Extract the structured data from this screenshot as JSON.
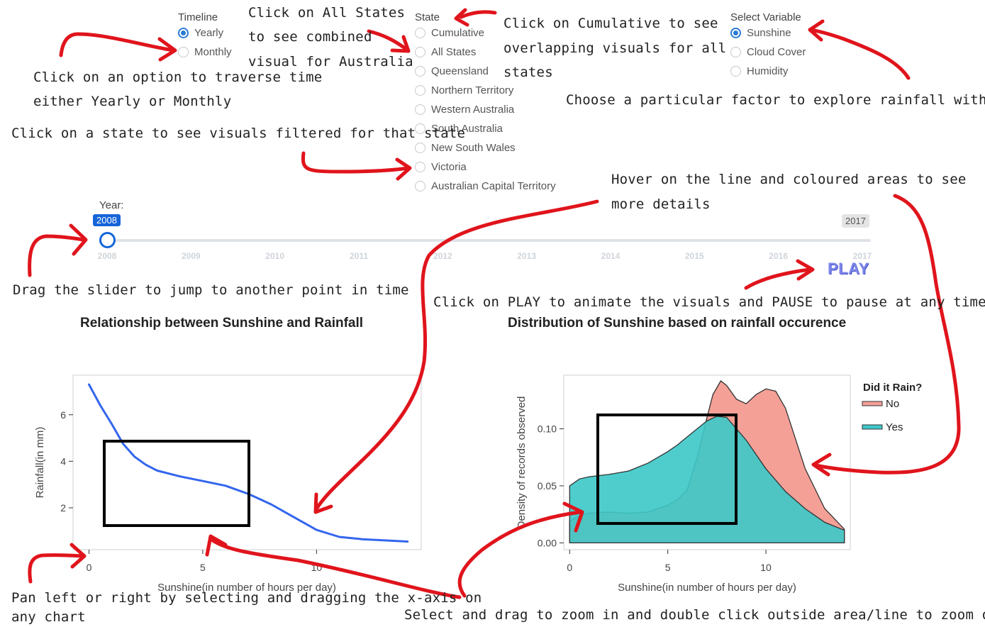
{
  "timeline": {
    "title": "Timeline",
    "options": [
      "Yearly",
      "Monthly"
    ],
    "selected": 0
  },
  "state": {
    "title": "State",
    "options": [
      "Cumulative",
      "All States",
      "Queensland",
      "Northern Territory",
      "Western Australia",
      "South Australia",
      "New South Wales",
      "Victoria",
      "Australian Capital Territory"
    ],
    "selected": -1
  },
  "variable": {
    "title": "Select Variable",
    "options": [
      "Sunshine",
      "Cloud Cover",
      "Humidity"
    ],
    "selected": 0
  },
  "slider": {
    "label": "Year:",
    "current": "2008",
    "end": "2017",
    "years": [
      "2008",
      "2009",
      "2010",
      "2011",
      "2012",
      "2013",
      "2014",
      "2015",
      "2016",
      "2017"
    ],
    "value": 2008
  },
  "play_label": "PLAY",
  "annotations": {
    "timeline_l1": "Click on  an option to traverse time",
    "timeline_l2": "either Yearly or Monthly",
    "allstates_l1": "Click on All States",
    "allstates_l2": "to see combined",
    "allstates_l3": "visual for Australia",
    "cumulative_l1": "Click on Cumulative to see",
    "cumulative_l2": "overlapping visuals for all",
    "cumulative_l3": "states",
    "factor": "Choose a particular factor to explore rainfall with",
    "state": "Click on a state to see visuals filtered for that state",
    "hover_l1": "Hover on the line and coloured areas to see",
    "hover_l2": "more details",
    "slider": "Drag the slider to jump to another point in time",
    "play": "Click on PLAY to animate the visuals and PAUSE to pause at any time",
    "pan_l1": "Pan left or right by selecting and dragging the x-axis on",
    "pan_l2": "any chart",
    "zoom": "Select and drag to zoom in and double click outside area/line to zoom out"
  },
  "colors": {
    "line": "#3366ee",
    "no_fill": "#f4a097",
    "yes_fill": "#3cc8c8",
    "arrow": "#e0141c",
    "accent": "#1565d8"
  },
  "chart_data": [
    {
      "type": "line",
      "title": "Relationship between Sunshine and Rainfall",
      "xlabel": "Sunshine(in number of hours per day)",
      "ylabel": "Rainfall(in mm)",
      "xlim": [
        -0.7,
        14.6
      ],
      "ylim": [
        0.2,
        7.7
      ],
      "xticks": [
        0,
        5,
        10
      ],
      "yticks": [
        2,
        4,
        6
      ],
      "series": [
        {
          "x": [
            0,
            0.5,
            1,
            1.5,
            2,
            2.5,
            3,
            4,
            5,
            6,
            7,
            8,
            9,
            10,
            11,
            12,
            13,
            14
          ],
          "y": [
            7.3,
            6.4,
            5.6,
            4.75,
            4.2,
            3.85,
            3.6,
            3.35,
            3.15,
            2.95,
            2.6,
            2.15,
            1.6,
            1.05,
            0.75,
            0.65,
            0.6,
            0.55
          ]
        }
      ]
    },
    {
      "type": "area",
      "title": "Distribution of Sunshine based on rainfall occurence",
      "xlabel": "Sunshine(in number of hours per day)",
      "ylabel": "Density of records observed",
      "xlim": [
        -0.3,
        14.3
      ],
      "ylim": [
        -0.006,
        0.147
      ],
      "xticks": [
        0,
        5,
        10
      ],
      "yticks": [
        0.0,
        0.05,
        0.1
      ],
      "ytick_labels": [
        "0.00",
        "0.05",
        "0.10"
      ],
      "legend_title": "Did it Rain?",
      "legend_position": "right",
      "series": [
        {
          "name": "No",
          "x": [
            0,
            0.5,
            1,
            2,
            3,
            4,
            5,
            5.5,
            6,
            6.5,
            7,
            7.3,
            7.7,
            8,
            8.5,
            9,
            9.5,
            10,
            10.5,
            11,
            12,
            13,
            14
          ],
          "y": [
            0.019,
            0.024,
            0.026,
            0.027,
            0.026,
            0.027,
            0.033,
            0.038,
            0.047,
            0.075,
            0.11,
            0.13,
            0.142,
            0.138,
            0.126,
            0.122,
            0.13,
            0.135,
            0.133,
            0.118,
            0.065,
            0.03,
            0.012
          ]
        },
        {
          "name": "Yes",
          "x": [
            0,
            0.5,
            1,
            2,
            3,
            4,
            5,
            5.5,
            6,
            7,
            7.5,
            8,
            9,
            10,
            11,
            12,
            13,
            14
          ],
          "y": [
            0.05,
            0.056,
            0.058,
            0.06,
            0.063,
            0.07,
            0.08,
            0.086,
            0.093,
            0.107,
            0.111,
            0.11,
            0.09,
            0.065,
            0.045,
            0.03,
            0.018,
            0.011
          ]
        }
      ]
    }
  ]
}
